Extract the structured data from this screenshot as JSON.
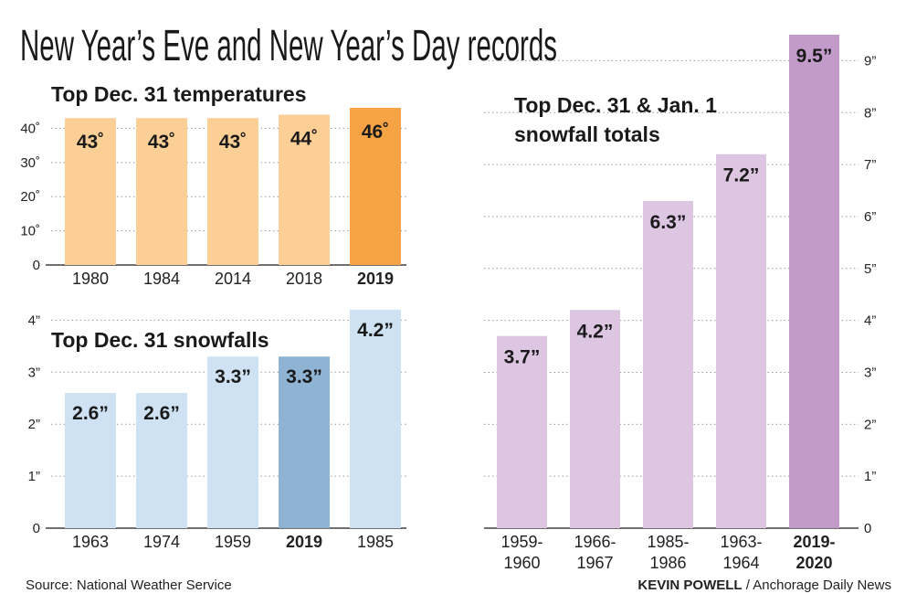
{
  "title": "New Year’s Eve and New Year’s Day records",
  "footer": {
    "source": "Source: National Weather Service",
    "credit_name": "KEVIN POWELL",
    "credit_sep": " / ",
    "credit_org": "Anchorage Daily News"
  },
  "chart_data": [
    {
      "type": "bar",
      "title": "Top Dec. 31 temperatures",
      "categories": [
        "1980",
        "1984",
        "2014",
        "2018",
        "2019"
      ],
      "values": [
        43,
        43,
        43,
        44,
        46
      ],
      "value_labels": [
        "43˚",
        "43˚",
        "43˚",
        "44˚",
        "46˚"
      ],
      "highlight": "2019",
      "ylim": [
        0,
        46
      ],
      "yticks": [
        0,
        10,
        20,
        30,
        40
      ],
      "ytick_labels": [
        "0",
        "10˚",
        "20˚",
        "30˚",
        "40˚"
      ],
      "colors": {
        "bar": "#fbcf95",
        "highlight": "#f5a344"
      },
      "grid": true
    },
    {
      "type": "bar",
      "title": "Top Dec. 31 snowfalls",
      "categories": [
        "1963",
        "1974",
        "1959",
        "2019",
        "1985"
      ],
      "values": [
        2.6,
        2.6,
        3.3,
        3.3,
        4.2
      ],
      "value_labels": [
        "2.6”",
        "2.6”",
        "3.3”",
        "3.3”",
        "4.2”"
      ],
      "highlight": "2019",
      "ylim": [
        0,
        4.2
      ],
      "yticks": [
        0,
        1,
        2,
        3,
        4
      ],
      "ytick_labels": [
        "0",
        "1”",
        "2”",
        "3”",
        "4”"
      ],
      "colors": {
        "bar": "#cfe2f3",
        "highlight": "#8eb3d3"
      },
      "grid": true
    },
    {
      "type": "bar",
      "title": "Top Dec. 31 & Jan. 1 snowfall totals",
      "title_lines": [
        "Top Dec. 31 & Jan. 1",
        "snowfall totals"
      ],
      "categories": [
        "1959-1960",
        "1966-1967",
        "1985-1986",
        "1963-1964",
        "2019-2020"
      ],
      "category_lines": [
        [
          "1959-",
          "1960"
        ],
        [
          "1966-",
          "1967"
        ],
        [
          "1985-",
          "1986"
        ],
        [
          "1963-",
          "1964"
        ],
        [
          "2019-",
          "2020"
        ]
      ],
      "values": [
        3.7,
        4.2,
        6.3,
        7.2,
        9.5
      ],
      "value_labels": [
        "3.7”",
        "4.2”",
        "6.3”",
        "7.2”",
        "9.5”"
      ],
      "highlight": "2019-2020",
      "ylim": [
        0,
        9.5
      ],
      "yticks": [
        0,
        1,
        2,
        3,
        4,
        5,
        6,
        7,
        8,
        9
      ],
      "ytick_labels": [
        "0",
        "1”",
        "2”",
        "3”",
        "4”",
        "5”",
        "6”",
        "7”",
        "8”",
        "9”"
      ],
      "colors": {
        "bar": "#dcc6e2",
        "highlight": "#c39bcb"
      },
      "grid": true
    }
  ]
}
